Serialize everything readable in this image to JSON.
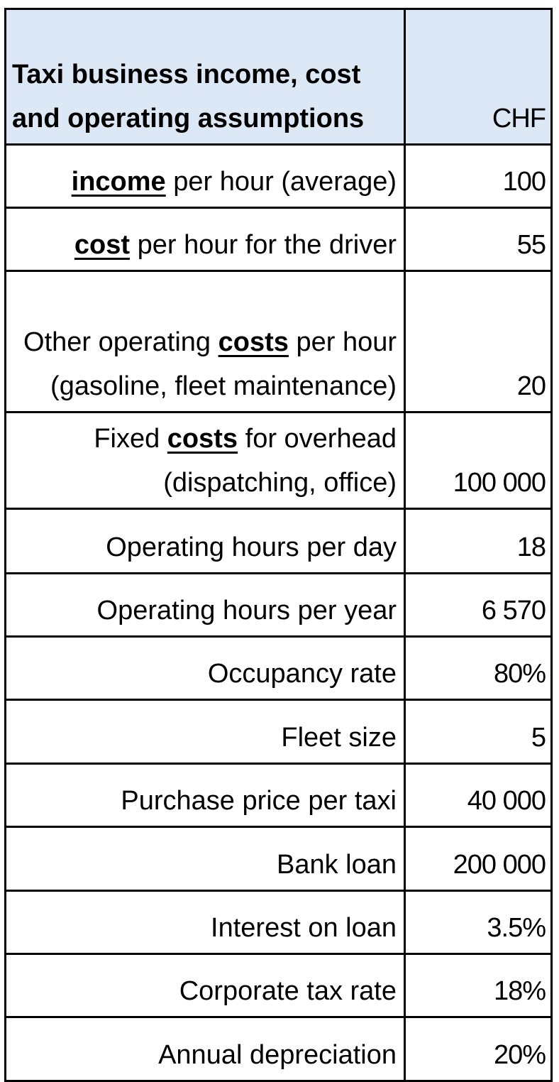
{
  "header": {
    "title_line1": "Taxi business income, cost",
    "title_line2": "and operating assumptions",
    "currency": "CHF"
  },
  "rows": [
    {
      "pre": "",
      "em": "income",
      "post": " per hour (average)",
      "value": "100"
    },
    {
      "pre": "",
      "em": "cost",
      "post": " per hour for the driver",
      "value": "55"
    },
    {
      "pre": "Other operating ",
      "em": "costs",
      "post": " per hour (gasoline, fleet maintenance)",
      "value": "20"
    },
    {
      "pre": "Fixed ",
      "em": "costs",
      "post": " for overhead (dispatching, office)",
      "value": "100 000"
    },
    {
      "pre": "Operating hours per day",
      "em": "",
      "post": "",
      "value": "18"
    },
    {
      "pre": "Operating hours per year",
      "em": "",
      "post": "",
      "value": "6 570"
    },
    {
      "pre": "Occupancy rate",
      "em": "",
      "post": "",
      "value": "80%"
    },
    {
      "pre": "Fleet size",
      "em": "",
      "post": "",
      "value": "5"
    },
    {
      "pre": "Purchase price per taxi",
      "em": "",
      "post": "",
      "value": "40 000"
    },
    {
      "pre": "Bank loan",
      "em": "",
      "post": "",
      "value": "200 000"
    },
    {
      "pre": "Interest on loan",
      "em": "",
      "post": "",
      "value": "3.5%"
    },
    {
      "pre": "Corporate tax rate",
      "em": "",
      "post": "",
      "value": "18%"
    },
    {
      "pre": "Annual depreciation",
      "em": "",
      "post": "",
      "value": "20%"
    }
  ]
}
